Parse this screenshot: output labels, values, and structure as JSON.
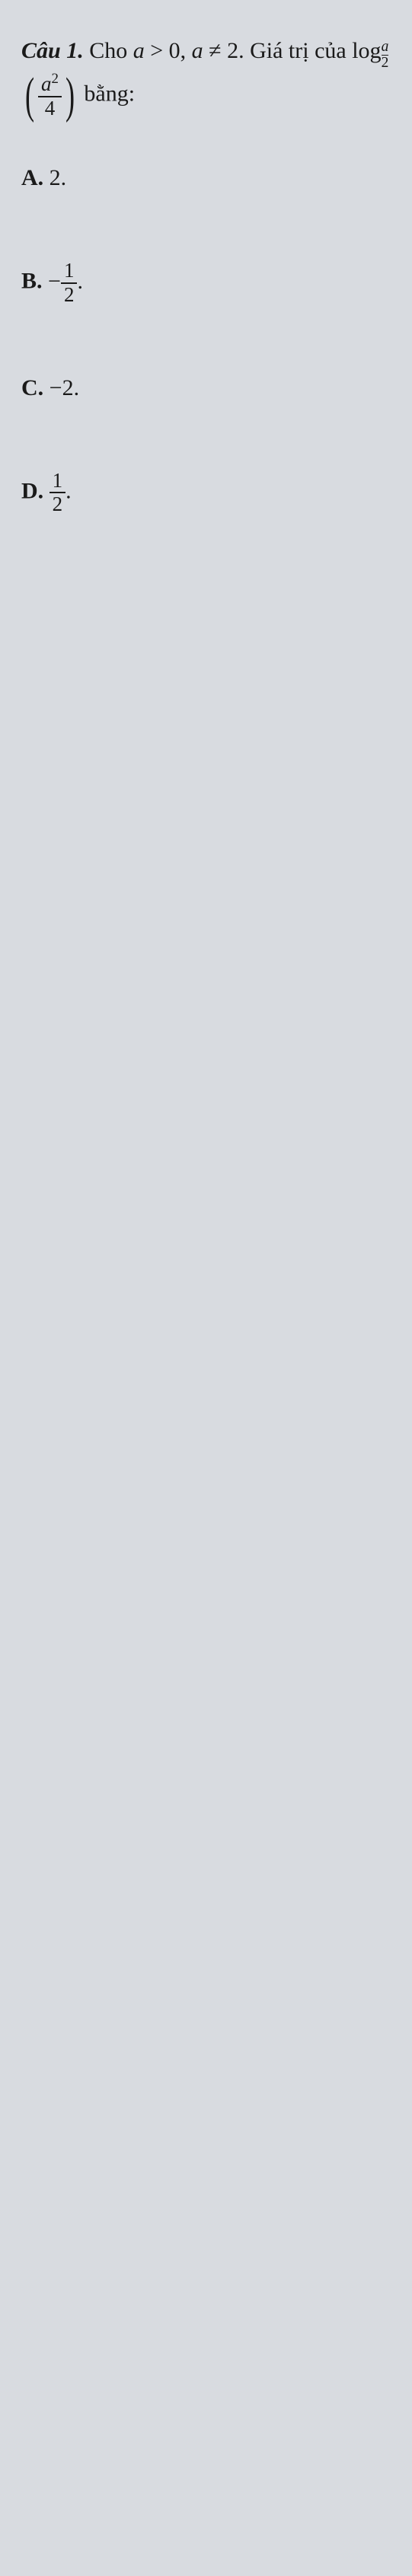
{
  "question": {
    "label": "Câu 1.",
    "prefix": "Cho ",
    "cond1_lhs": "a",
    "cond1_op": " > ",
    "cond1_rhs": "0",
    "sep": ", ",
    "cond2_lhs": "a",
    "cond2_op": " ≠ ",
    "cond2_rhs": "2",
    "mid": ". Giá trị của ",
    "logword": "log",
    "log_base_num": "a",
    "log_base_den": "2",
    "arg_num_base": "a",
    "arg_num_exp": "2",
    "arg_den": "4",
    "suffix": " bằng:"
  },
  "options": {
    "A": {
      "label": "A.",
      "value": "2",
      "tail": "."
    },
    "B": {
      "label": "B.",
      "neg": "−",
      "num": "1",
      "den": "2",
      "tail": "."
    },
    "C": {
      "label": "C.",
      "neg": "−",
      "value": "2",
      "tail": "."
    },
    "D": {
      "label": "D.",
      "num": "1",
      "den": "2",
      "tail": "."
    }
  },
  "colors": {
    "background": "#d8dbe0",
    "text": "#1a1a1a"
  },
  "typography": {
    "font_family": "Times New Roman",
    "base_fontsize_pt": 22
  }
}
